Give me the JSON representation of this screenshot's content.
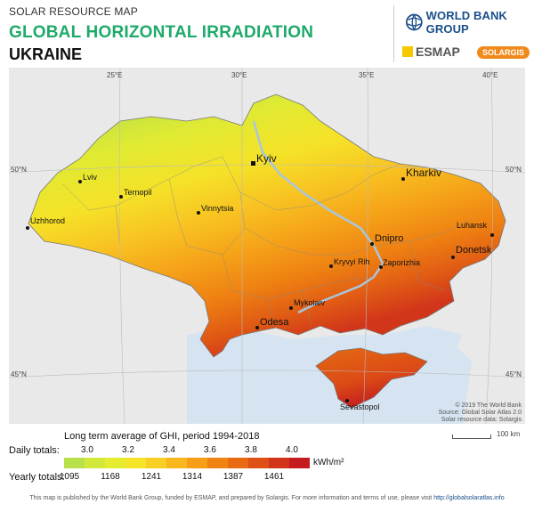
{
  "header": {
    "subtitle": "SOLAR RESOURCE MAP",
    "title": "GLOBAL HORIZONTAL IRRADIATION",
    "country": "UKRAINE"
  },
  "logos": {
    "worldbank": "WORLD BANK GROUP",
    "esmap": "ESMAP",
    "solargis": "SOLARGIS"
  },
  "map": {
    "longitudes": [
      "25°E",
      "30°E",
      "35°E",
      "40°E"
    ],
    "latitudes": [
      "50°N",
      "45°N"
    ],
    "cities": [
      {
        "name": "Kyiv",
        "size": "large"
      },
      {
        "name": "Kharkiv",
        "size": "large"
      },
      {
        "name": "Lviv",
        "size": "small"
      },
      {
        "name": "Ternopil",
        "size": "small"
      },
      {
        "name": "Vinnytsia",
        "size": "small"
      },
      {
        "name": "Uzhhorod",
        "size": "small"
      },
      {
        "name": "Luhansk",
        "size": "small"
      },
      {
        "name": "Dnipro",
        "size": "medium"
      },
      {
        "name": "Donetsk",
        "size": "medium"
      },
      {
        "name": "Kryvyi Rih",
        "size": "small"
      },
      {
        "name": "Zaporizhia",
        "size": "small"
      },
      {
        "name": "Mykolaiv",
        "size": "small"
      },
      {
        "name": "Odesa",
        "size": "medium"
      },
      {
        "name": "Sevastopol",
        "size": "small"
      }
    ],
    "credits": [
      "© 2019 The World Bank",
      "Source: Global Solar Atlas 2.0",
      "Solar resource data: Solargis"
    ],
    "scale_label": "100 km"
  },
  "legend": {
    "title": "Long term average of GHI, period 1994-2018",
    "daily_label": "Daily totals:",
    "yearly_label": "Yearly totals:",
    "unit": "kWh/m²",
    "daily_ticks": [
      "3.0",
      "3.2",
      "3.4",
      "3.6",
      "3.8",
      "4.0"
    ],
    "yearly_ticks": [
      "1095",
      "1168",
      "1241",
      "1314",
      "1387",
      "1461"
    ],
    "colors": [
      "#b8e04a",
      "#d2e83a",
      "#e6ec30",
      "#f5e428",
      "#f8cf24",
      "#f8b71c",
      "#f59e16",
      "#f08412",
      "#e86a12",
      "#de5016",
      "#d2361a",
      "#c41c20"
    ]
  },
  "footer": {
    "text": "This map is published by the World Bank Group, funded by ESMAP, and prepared by Solargis. For more information and terms of use, please visit",
    "link": "http://globalsolaratlas.info"
  }
}
